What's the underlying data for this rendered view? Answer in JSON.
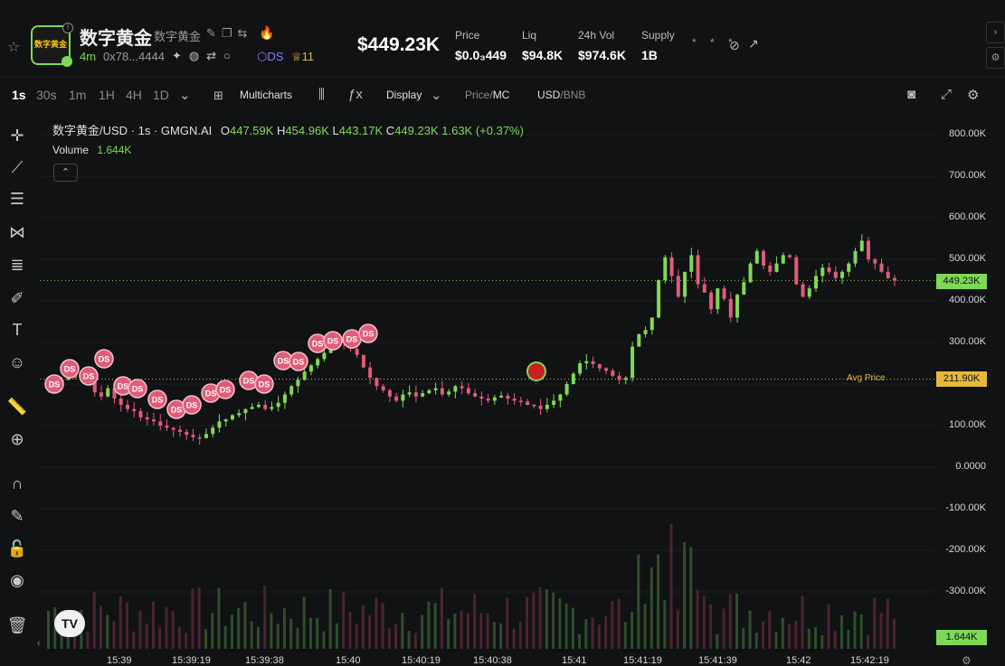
{
  "header": {
    "token_name": "数字黄金",
    "token_sub": "数字黄金",
    "logo_text": "数字黄金",
    "age": "4m",
    "address": "0x78...4444",
    "ds_tag": "DS",
    "crown_count": "11",
    "big_price": "$449.23K",
    "stats": [
      {
        "label": "Price",
        "value": "$0.0₃449"
      },
      {
        "label": "Liq",
        "value": "$94.8K"
      },
      {
        "label": "24h Vol",
        "value": "$974.6K"
      },
      {
        "label": "Supply",
        "value": "1B"
      }
    ],
    "masked": "* * *"
  },
  "toolbar": {
    "timeframes": [
      "1s",
      "30s",
      "1m",
      "1H",
      "4H",
      "1D"
    ],
    "active_timeframe": "1s",
    "multicharts": "Multicharts",
    "display": "Display",
    "price_label": "Price",
    "mc_label": "MC",
    "usd_label": "USD",
    "bnb_label": "BNB",
    "sep": "/"
  },
  "legend": {
    "pair": "数字黄金/USD · 1s · GMGN.AI",
    "o_label": "O",
    "o_val": "447.59K",
    "h_label": "H",
    "h_val": "454.96K",
    "l_label": "L",
    "l_val": "443.17K",
    "c_label": "C",
    "c_val": "449.23K",
    "change": "1.63K (+0.37%)",
    "volume_label": "Volume",
    "volume_val": "1.644K"
  },
  "chart_data": {
    "type": "candlestick",
    "y_ticks": [
      "800.00K",
      "700.00K",
      "600.00K",
      "500.00K",
      "400.00K",
      "300.00K",
      "200.00K",
      "100.00K",
      "0.0000",
      "-100.00K",
      "-200.00K",
      "-300.00K"
    ],
    "y_tick_values": [
      800000,
      700000,
      600000,
      500000,
      400000,
      300000,
      200000,
      100000,
      0,
      -100000,
      -200000,
      -300000
    ],
    "x_ticks": [
      "15:39",
      "15:39:19",
      "15:39:38",
      "15:40",
      "15:40:19",
      "15:40:38",
      "15:41",
      "15:41:19",
      "15:41:39",
      "15:42",
      "15:42:19"
    ],
    "last_price_label": "449.23K",
    "last_price": 449230,
    "avg_price_label": "211.90K",
    "avg_price": 211900,
    "avg_price_text": "Avg Price",
    "volume_tag": "1.644K",
    "marker_label": "DS",
    "up_color": "#7ed957",
    "down_color": "#e05c78",
    "close_series": [
      200,
      205,
      210,
      230,
      215,
      225,
      205,
      180,
      170,
      190,
      165,
      150,
      140,
      135,
      120,
      115,
      110,
      100,
      95,
      90,
      85,
      78,
      72,
      70,
      80,
      95,
      110,
      115,
      125,
      130,
      140,
      145,
      150,
      140,
      145,
      155,
      175,
      195,
      210,
      230,
      245,
      260,
      275,
      295,
      310,
      300,
      285,
      270,
      240,
      215,
      195,
      185,
      170,
      160,
      175,
      180,
      170,
      178,
      185,
      190,
      175,
      182,
      195,
      190,
      178,
      170,
      165,
      160,
      168,
      172,
      165,
      160,
      158,
      150,
      148,
      140,
      150,
      160,
      175,
      200,
      225,
      250,
      255,
      248,
      238,
      232,
      220,
      210,
      215,
      290,
      320,
      330,
      360,
      450,
      505,
      460,
      410,
      470,
      510,
      440,
      420,
      380,
      430,
      405,
      360,
      415,
      445,
      490,
      520,
      485,
      470,
      490,
      510,
      505,
      440,
      410,
      430,
      460,
      480,
      470,
      455,
      470,
      490,
      520,
      545,
      500,
      490,
      470,
      455,
      449
    ]
  }
}
